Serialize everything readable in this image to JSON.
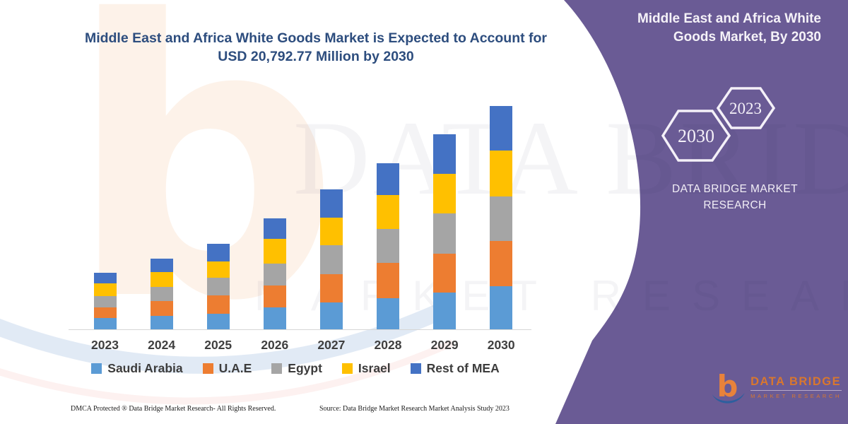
{
  "title": {
    "line1": "Middle East and Africa White Goods Market is Expected to Account for",
    "line2": "USD 20,792.77 Million by 2030",
    "color": "#2d4d7e"
  },
  "chart_data": {
    "type": "bar",
    "stacked": true,
    "unit": "USD Million",
    "title": "Middle East and Africa White Goods Market is Expected to Account for USD 20,792.77 Million by 2030",
    "categories": [
      "2023",
      "2024",
      "2025",
      "2026",
      "2027",
      "2028",
      "2029",
      "2030"
    ],
    "series": [
      {
        "name": "Saudi Arabia",
        "color": "#5B9BD5",
        "values": [
          1060,
          1280,
          1460,
          2030,
          2470,
          2880,
          3430,
          4040
        ]
      },
      {
        "name": "U.A.E",
        "color": "#ED7D31",
        "values": [
          990,
          1370,
          1700,
          2030,
          2650,
          3310,
          3600,
          4200
        ]
      },
      {
        "name": "Egypt",
        "color": "#A5A5A5",
        "values": [
          1060,
          1280,
          1660,
          2060,
          2700,
          3160,
          3760,
          4130
        ]
      },
      {
        "name": "Israel",
        "color": "#FFC000",
        "values": [
          1190,
          1370,
          1480,
          2280,
          2570,
          3140,
          3690,
          4310
        ]
      },
      {
        "name": "Rest of MEA",
        "color": "#4472C4",
        "values": [
          990,
          1280,
          1680,
          1960,
          2650,
          3000,
          3710,
          4113
        ]
      }
    ],
    "totals": [
      5290,
      6580,
      7980,
      10360,
      13040,
      15490,
      18190,
      20793
    ],
    "ylim": [
      0,
      20793
    ],
    "grid": false,
    "legend_position": "bottom",
    "xlabel": "",
    "ylabel": ""
  },
  "side_panel": {
    "bg_color": "#6a5b95",
    "title_line1": "Middle East and Africa White",
    "title_line2": "Goods Market, By 2030",
    "hexagon_large_label": "2030",
    "hexagon_small_label": "2023",
    "brand_line1": "DATA BRIDGE MARKET",
    "brand_line2": "RESEARCH"
  },
  "logo": {
    "glyph": "b",
    "title": "DATA BRIDGE",
    "subtitle": "MARKET RESEARCH"
  },
  "watermark": {
    "glyph": "b",
    "big_text": "DATA BRIDGE",
    "sub_text": "MARKET RESEARCH"
  },
  "footer": {
    "dmca": "DMCA Protected ® Data Bridge Market Research-  All Rights Reserved.",
    "source": "Source: Data Bridge Market Research  Market Analysis Study 2023"
  }
}
